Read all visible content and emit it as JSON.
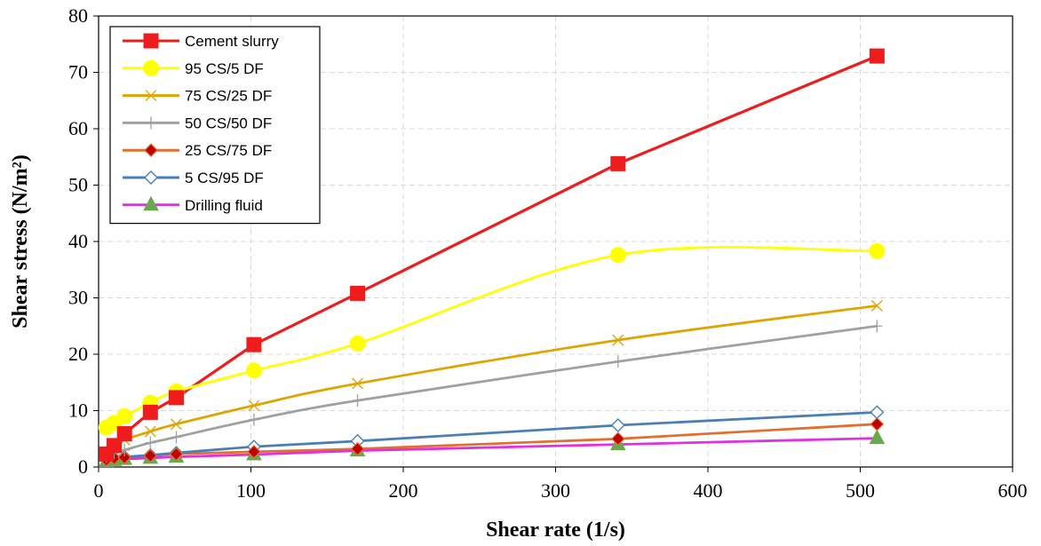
{
  "chart_data": {
    "type": "line",
    "xlabel": "Shear rate (1/s)",
    "ylabel": "Shear stress (N/m²)",
    "xlim": [
      0,
      600
    ],
    "ylim": [
      0,
      80
    ],
    "xticks": [
      0,
      100,
      200,
      300,
      400,
      500,
      600
    ],
    "yticks": [
      0,
      10,
      20,
      30,
      40,
      50,
      60,
      70,
      80
    ],
    "grid": true,
    "legend_position": "top-left",
    "series": [
      {
        "name": "Cement slurry",
        "color": "#ee1c1c",
        "marker": "square",
        "x": [
          5.1,
          10.2,
          17,
          34,
          51,
          102,
          170,
          341,
          511
        ],
        "y": [
          2.3,
          3.8,
          5.9,
          9.7,
          12.3,
          21.7,
          30.8,
          53.8,
          72.9
        ]
      },
      {
        "name": "95 CS/5 DF",
        "color": "#ffff00",
        "marker": "circle",
        "smooth": true,
        "x": [
          5.1,
          10.2,
          17,
          34,
          51,
          102,
          170,
          341,
          511
        ],
        "y": [
          7.0,
          7.8,
          9.0,
          11.4,
          13.4,
          17.1,
          21.9,
          37.6,
          38.3
        ]
      },
      {
        "name": "75 CS/25 DF",
        "color": "#e0a400",
        "marker": "x",
        "smooth": true,
        "x": [
          5.1,
          10.2,
          17,
          34,
          51,
          102,
          170,
          341,
          511
        ],
        "y": [
          2.6,
          3.5,
          4.8,
          6.3,
          7.6,
          10.9,
          14.8,
          22.5,
          28.6
        ]
      },
      {
        "name": "50 CS/50 DF",
        "color": "#a0a0a0",
        "marker": "plus",
        "smooth": true,
        "x": [
          5.1,
          10.2,
          17,
          34,
          51,
          102,
          170,
          341,
          511
        ],
        "y": [
          1.8,
          2.5,
          3.0,
          4.3,
          5.3,
          8.4,
          11.8,
          18.7,
          25.0
        ]
      },
      {
        "name": "25 CS/75 DF",
        "color": "#e07030",
        "marker": "diamond-filled",
        "x": [
          5.1,
          10.2,
          17,
          34,
          51,
          102,
          170,
          341,
          511
        ],
        "y": [
          1.3,
          1.6,
          1.7,
          2.0,
          2.3,
          2.7,
          3.2,
          5.0,
          7.6
        ]
      },
      {
        "name": " 5 CS/95 DF",
        "color": "#4a7fb5",
        "marker": "diamond-open",
        "x": [
          5.1,
          10.2,
          17,
          34,
          51,
          102,
          170,
          341,
          511
        ],
        "y": [
          1.4,
          1.6,
          1.8,
          2.1,
          2.5,
          3.6,
          4.6,
          7.4,
          9.7
        ]
      },
      {
        "name": "Drilling fluid",
        "color": "#e030e0",
        "marker": "triangle",
        "marker_fill": "#6aa84f",
        "x": [
          5.1,
          10.2,
          17,
          34,
          51,
          102,
          170,
          341,
          511
        ],
        "y": [
          1.0,
          1.2,
          1.4,
          1.6,
          1.8,
          2.2,
          2.9,
          4.0,
          5.1
        ]
      }
    ]
  }
}
